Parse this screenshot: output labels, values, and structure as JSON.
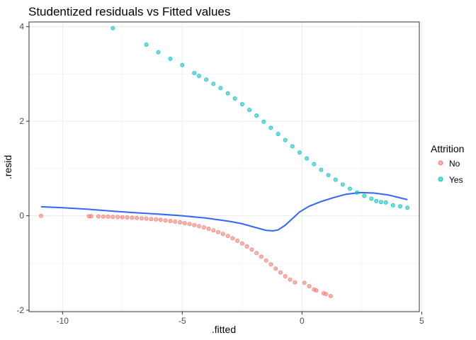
{
  "chart_data": {
    "type": "scatter",
    "title": "Studentized residuals vs Fitted values",
    "xlabel": ".fitted",
    "ylabel": ".resid",
    "xlim": [
      -11.4,
      4.9
    ],
    "ylim": [
      -2.03,
      4.1
    ],
    "x_ticks": [
      -10,
      -5,
      0,
      5
    ],
    "x_tick_labels": [
      "-10",
      "-5",
      "0",
      "5"
    ],
    "y_ticks": [
      -2,
      0,
      2,
      4
    ],
    "y_tick_labels": [
      "-2",
      "0",
      "2",
      "4"
    ],
    "grid": true,
    "legend": {
      "title": "Attrition",
      "position": "right",
      "entries": [
        "No",
        "Yes"
      ]
    },
    "series": [
      {
        "name": "No",
        "color": "#F8766D",
        "kind": "points",
        "points": [
          [
            -10.9,
            -0.003
          ],
          [
            -8.9,
            -0.01
          ],
          [
            -8.8,
            -0.011
          ],
          [
            -8.5,
            -0.014
          ],
          [
            -8.3,
            -0.017
          ],
          [
            -8.1,
            -0.02
          ],
          [
            -7.9,
            -0.024
          ],
          [
            -7.7,
            -0.028
          ],
          [
            -7.5,
            -0.032
          ],
          [
            -7.3,
            -0.037
          ],
          [
            -7.1,
            -0.042
          ],
          [
            -6.9,
            -0.048
          ],
          [
            -6.7,
            -0.054
          ],
          [
            -6.5,
            -0.061
          ],
          [
            -6.3,
            -0.069
          ],
          [
            -6.1,
            -0.078
          ],
          [
            -5.9,
            -0.088
          ],
          [
            -5.7,
            -0.099
          ],
          [
            -5.5,
            -0.111
          ],
          [
            -5.3,
            -0.125
          ],
          [
            -5.1,
            -0.14
          ],
          [
            -4.9,
            -0.157
          ],
          [
            -4.7,
            -0.176
          ],
          [
            -4.5,
            -0.197
          ],
          [
            -4.3,
            -0.221
          ],
          [
            -4.1,
            -0.247
          ],
          [
            -3.9,
            -0.276
          ],
          [
            -3.7,
            -0.309
          ],
          [
            -3.5,
            -0.345
          ],
          [
            -3.3,
            -0.385
          ],
          [
            -3.1,
            -0.428
          ],
          [
            -2.9,
            -0.477
          ],
          [
            -2.7,
            -0.53
          ],
          [
            -2.5,
            -0.587
          ],
          [
            -2.3,
            -0.65
          ],
          [
            -2.1,
            -0.717
          ],
          [
            -1.9,
            -0.79
          ],
          [
            -1.7,
            -0.867
          ],
          [
            -1.5,
            -0.948
          ],
          [
            -1.3,
            -1.03
          ],
          [
            -1.1,
            -1.12
          ],
          [
            -0.9,
            -1.2
          ],
          [
            -0.7,
            -1.28
          ],
          [
            -0.5,
            -1.35
          ],
          [
            -0.3,
            -1.41
          ],
          [
            0.1,
            -1.42
          ],
          [
            0.3,
            -1.49
          ],
          [
            0.5,
            -1.56
          ],
          [
            0.6,
            -1.58
          ],
          [
            0.9,
            -1.64
          ],
          [
            1.0,
            -1.66
          ],
          [
            1.2,
            -1.7
          ]
        ]
      },
      {
        "name": "Yes",
        "color": "#00BFC4",
        "kind": "points",
        "points": [
          [
            -7.9,
            3.97
          ],
          [
            -6.5,
            3.62
          ],
          [
            -6.0,
            3.46
          ],
          [
            -5.5,
            3.32
          ],
          [
            -5.0,
            3.19
          ],
          [
            -4.5,
            3.02
          ],
          [
            -4.3,
            2.96
          ],
          [
            -4.0,
            2.88
          ],
          [
            -3.7,
            2.79
          ],
          [
            -3.4,
            2.7
          ],
          [
            -3.1,
            2.59
          ],
          [
            -2.8,
            2.48
          ],
          [
            -2.5,
            2.36
          ],
          [
            -2.2,
            2.24
          ],
          [
            -1.9,
            2.12
          ],
          [
            -1.6,
            1.99
          ],
          [
            -1.3,
            1.86
          ],
          [
            -1.0,
            1.73
          ],
          [
            -0.7,
            1.6
          ],
          [
            -0.4,
            1.47
          ],
          [
            -0.1,
            1.34
          ],
          [
            0.2,
            1.21
          ],
          [
            0.5,
            1.09
          ],
          [
            0.8,
            0.97
          ],
          [
            1.1,
            0.86
          ],
          [
            1.4,
            0.76
          ],
          [
            1.7,
            0.66
          ],
          [
            2.0,
            0.57
          ],
          [
            2.3,
            0.49
          ],
          [
            2.6,
            0.42
          ],
          [
            2.9,
            0.36
          ],
          [
            3.1,
            0.31
          ],
          [
            3.3,
            0.29
          ],
          [
            3.5,
            0.28
          ],
          [
            3.8,
            0.22
          ],
          [
            4.1,
            0.2
          ],
          [
            4.4,
            0.17
          ]
        ]
      },
      {
        "name": "smooth",
        "color": "#3366FF",
        "kind": "line",
        "points": [
          [
            -10.9,
            0.19
          ],
          [
            -10.0,
            0.17
          ],
          [
            -9.0,
            0.14
          ],
          [
            -8.0,
            0.1
          ],
          [
            -7.0,
            0.065
          ],
          [
            -6.0,
            0.035
          ],
          [
            -5.0,
            0.0
          ],
          [
            -4.0,
            -0.05
          ],
          [
            -3.0,
            -0.12
          ],
          [
            -2.5,
            -0.17
          ],
          [
            -2.0,
            -0.24
          ],
          [
            -1.5,
            -0.31
          ],
          [
            -1.2,
            -0.32
          ],
          [
            -1.0,
            -0.3
          ],
          [
            -0.7,
            -0.2
          ],
          [
            -0.4,
            -0.06
          ],
          [
            -0.1,
            0.08
          ],
          [
            0.3,
            0.2
          ],
          [
            0.8,
            0.3
          ],
          [
            1.3,
            0.38
          ],
          [
            1.8,
            0.45
          ],
          [
            2.4,
            0.49
          ],
          [
            3.0,
            0.48
          ],
          [
            3.6,
            0.44
          ],
          [
            4.0,
            0.39
          ],
          [
            4.4,
            0.34
          ]
        ]
      }
    ]
  }
}
